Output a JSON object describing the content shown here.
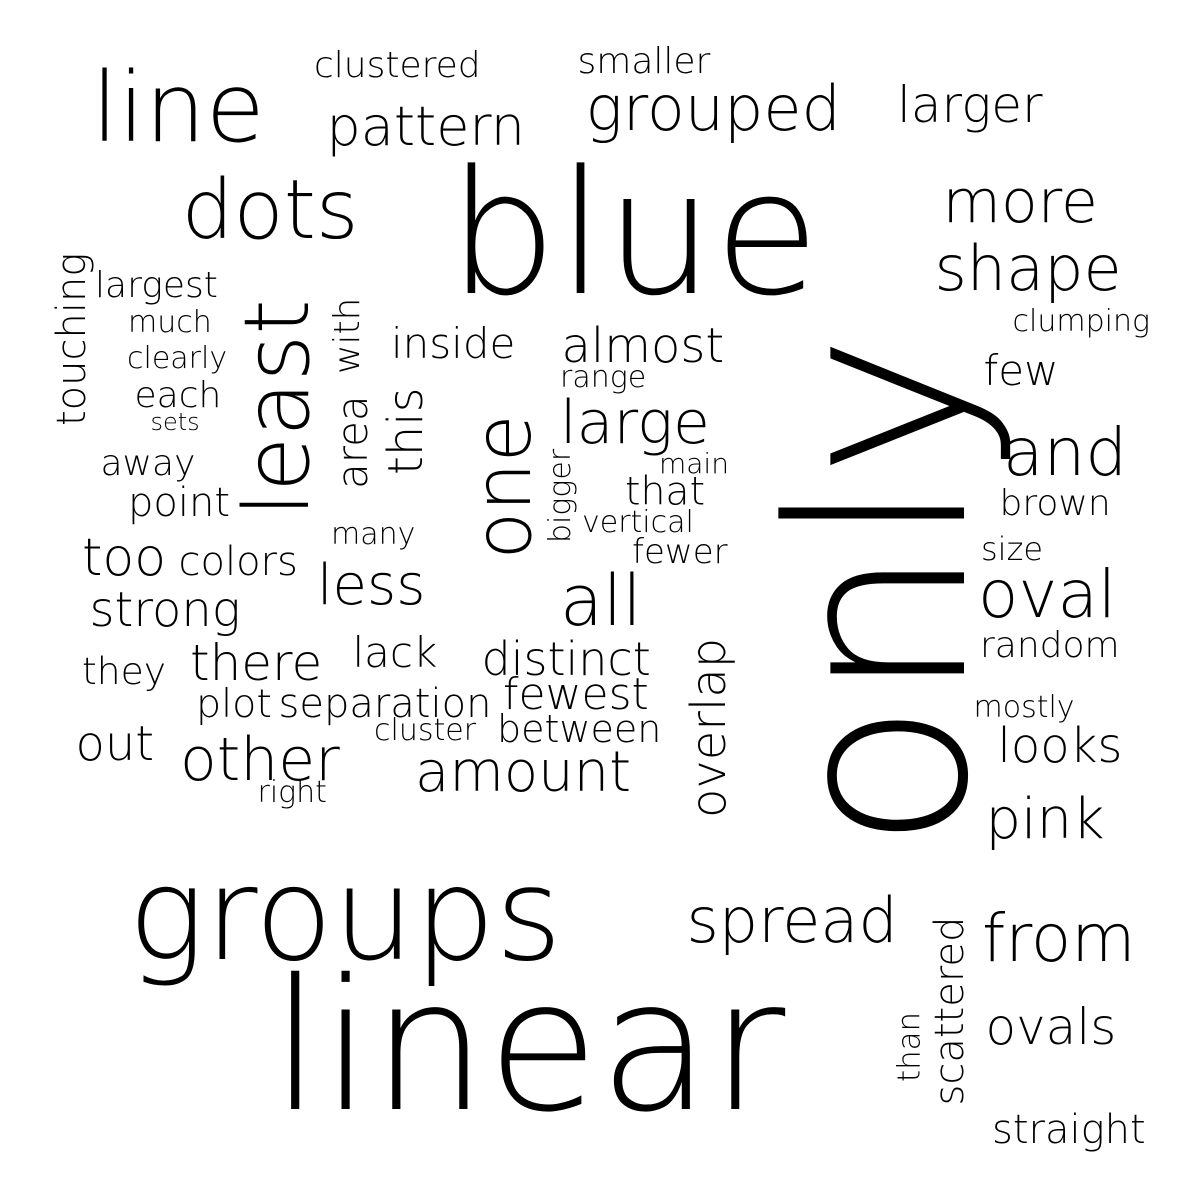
{
  "words": [
    "clustered",
    "smaller",
    "line",
    "grouped",
    "larger",
    "pattern",
    "blue",
    "dots",
    "more",
    "shape",
    "largest",
    "touching",
    "much",
    "clumping",
    "least",
    "with",
    "inside",
    "almost",
    "clearly",
    "each",
    "range",
    "few",
    "sets",
    "area",
    "this",
    "one",
    "large",
    "only",
    "and",
    "away",
    "main",
    "point",
    "that",
    "brown",
    "bigger",
    "vertical",
    "many",
    "too",
    "colors",
    "fewer",
    "size",
    "less",
    "strong",
    "all",
    "oval",
    "overlap",
    "lack",
    "distinct",
    "random",
    "they",
    "there",
    "fewest",
    "plot",
    "separation",
    "mostly",
    "cluster",
    "between",
    "out",
    "looks",
    "other",
    "amount",
    "right",
    "pink",
    "groups",
    "spread",
    "scattered",
    "from",
    "ovals",
    "than",
    "linear",
    "straight"
  ]
}
